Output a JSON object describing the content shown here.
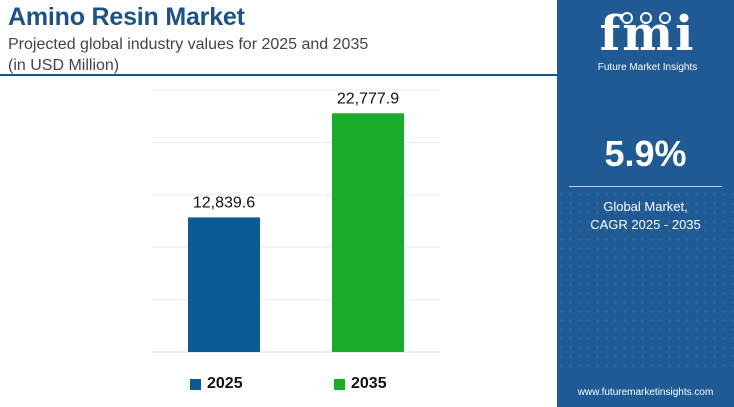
{
  "header": {
    "title": "Amino Resin Market",
    "subtitle_line1": "Projected global industry values for 2025 and 2035",
    "subtitle_line2": "(in USD Million)"
  },
  "chart_data": {
    "type": "bar",
    "categories": [
      "2025",
      "2035"
    ],
    "values": [
      12839.6,
      22777.9
    ],
    "value_labels": [
      "12,839.6",
      "22,777.9"
    ],
    "colors": [
      "#0b5a94",
      "#1aab2b"
    ],
    "ylim": [
      0,
      25000
    ],
    "grid": true,
    "legend": [
      "2025",
      "2035"
    ],
    "legend_position": "bottom"
  },
  "side_panel": {
    "logo_text": "fmi",
    "logo_subtitle": "Future Market Insights",
    "cagr_value": "5.9%",
    "cagr_label_line1": "Global Market,",
    "cagr_label_line2": "CAGR 2025 - 2035",
    "website": "www.futuremarketinsights.com",
    "background_color": "#1f5a95"
  }
}
